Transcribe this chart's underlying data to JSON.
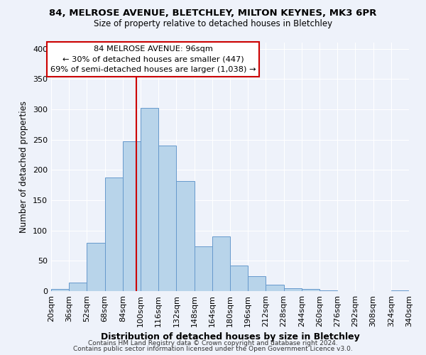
{
  "title1": "84, MELROSE AVENUE, BLETCHLEY, MILTON KEYNES, MK3 6PR",
  "title2": "Size of property relative to detached houses in Bletchley",
  "xlabel": "Distribution of detached houses by size in Bletchley",
  "ylabel": "Number of detached properties",
  "bin_labels": [
    "20sqm",
    "36sqm",
    "52sqm",
    "68sqm",
    "84sqm",
    "100sqm",
    "116sqm",
    "132sqm",
    "148sqm",
    "164sqm",
    "180sqm",
    "196sqm",
    "212sqm",
    "228sqm",
    "244sqm",
    "260sqm",
    "276sqm",
    "292sqm",
    "308sqm",
    "324sqm",
    "340sqm"
  ],
  "bin_edges": [
    20,
    36,
    52,
    68,
    84,
    100,
    116,
    132,
    148,
    164,
    180,
    196,
    212,
    228,
    244,
    260,
    276,
    292,
    308,
    324,
    340
  ],
  "bar_values": [
    3,
    14,
    80,
    188,
    247,
    302,
    240,
    181,
    74,
    90,
    42,
    25,
    11,
    5,
    4,
    1,
    0,
    0,
    0,
    1
  ],
  "bar_color": "#b8d4ea",
  "bar_edgecolor": "#6699cc",
  "vline_x": 96,
  "vline_color": "#cc0000",
  "ylim": [
    0,
    410
  ],
  "yticks": [
    0,
    50,
    100,
    150,
    200,
    250,
    300,
    350,
    400
  ],
  "annotation_title": "84 MELROSE AVENUE: 96sqm",
  "annotation_line1": "← 30% of detached houses are smaller (447)",
  "annotation_line2": "69% of semi-detached houses are larger (1,038) →",
  "footer1": "Contains HM Land Registry data © Crown copyright and database right 2024.",
  "footer2": "Contains public sector information licensed under the Open Government Licence v3.0.",
  "bg_color": "#eef2fa"
}
